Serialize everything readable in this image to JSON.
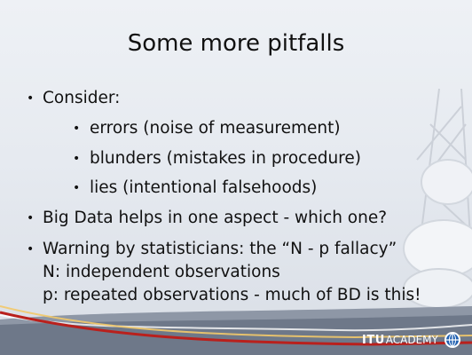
{
  "slide": {
    "title": "Some more pitfalls",
    "bullets": [
      {
        "text": "Consider:"
      },
      {
        "text": "errors (noise of measurement)"
      },
      {
        "text": "blunders (mistakes in procedure)"
      },
      {
        "text": "lies (intentional falsehoods)"
      },
      {
        "text": "Big Data helps in one aspect - which one?"
      },
      {
        "text": "Warning by statisticians: the “N - p fallacy”"
      },
      {
        "text": "N: independent observations"
      },
      {
        "text": "p: repeated observations - much of BD is this!"
      }
    ],
    "footer": {
      "itu": "ITU",
      "academy": "ACADEMY"
    },
    "colors": {
      "background": "#e6eaf0",
      "text": "#111111",
      "footer_wave": "#b9201c"
    }
  }
}
